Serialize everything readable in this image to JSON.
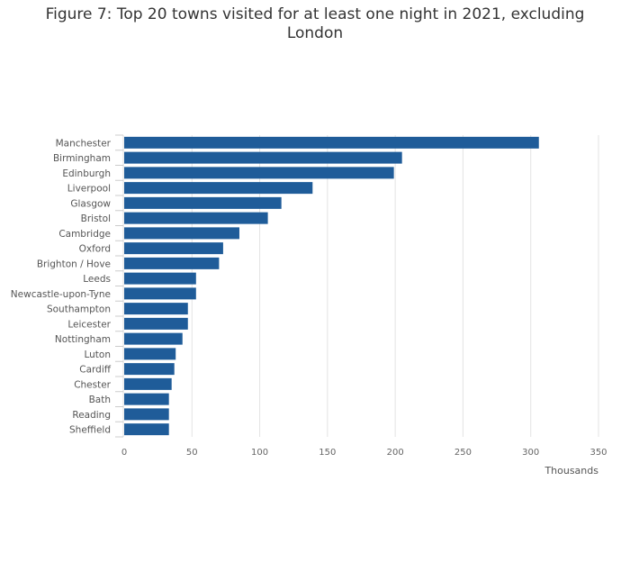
{
  "chart_data": {
    "type": "bar",
    "orientation": "horizontal",
    "title": "Figure 7: Top 20 towns visited for at least one night in 2021, excluding London",
    "categories": [
      "Manchester",
      "Birmingham",
      "Edinburgh",
      "Liverpool",
      "Glasgow",
      "Bristol",
      "Cambridge",
      "Oxford",
      "Brighton / Hove",
      "Leeds",
      "Newcastle-upon-Tyne",
      "Southampton",
      "Leicester",
      "Nottingham",
      "Luton",
      "Cardiff",
      "Chester",
      "Bath",
      "Reading",
      "Sheffield"
    ],
    "values": [
      306,
      205,
      199,
      139,
      116,
      106,
      85,
      73,
      70,
      53,
      53,
      47,
      47,
      43,
      38,
      37,
      35,
      33,
      33,
      33
    ],
    "xlabel": "Thousands",
    "ylabel": "",
    "xlim": [
      0,
      350
    ],
    "xticks": [
      0,
      50,
      100,
      150,
      200,
      250,
      300,
      350
    ],
    "grid": true,
    "legend": "none",
    "bar_color": "#1f5c99",
    "grid_color": "#e3e3e3"
  }
}
